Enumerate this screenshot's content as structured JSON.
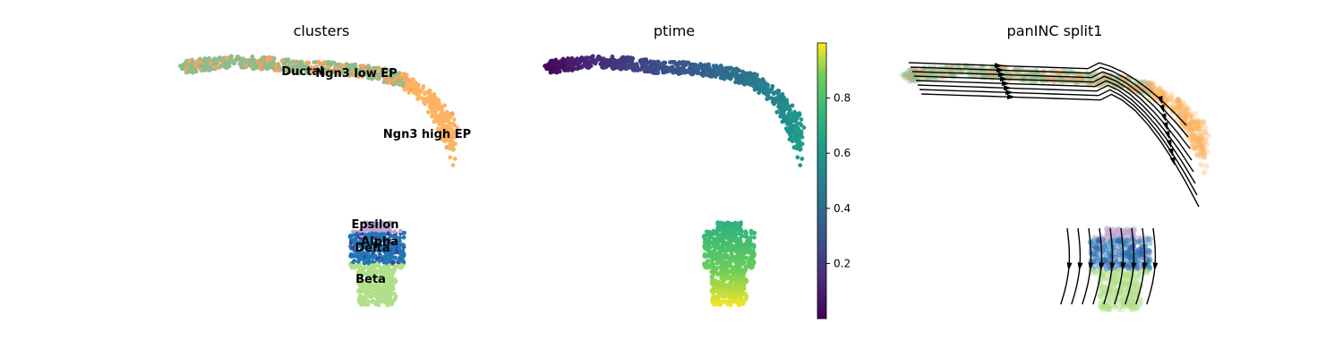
{
  "chart_data": [
    {
      "type": "scatter",
      "title": "clusters",
      "xlabel": "",
      "ylabel": "",
      "grid": false,
      "legend": "on data",
      "clusters": [
        {
          "label": "Ductal",
          "color": "#8fbc8f"
        },
        {
          "label": "Ngn3 low EP",
          "color": "#f4a460"
        },
        {
          "label": "Ngn3 high EP",
          "color": "#fdb462"
        },
        {
          "label": "Epsilon",
          "color": "#bca3d1"
        },
        {
          "label": "Alpha",
          "color": "#1f78b4"
        },
        {
          "label": "Delta",
          "color": "#3f3fa0"
        },
        {
          "label": "Beta",
          "color": "#b2df8a"
        }
      ]
    },
    {
      "type": "scatter",
      "title": "ptime",
      "xlabel": "",
      "ylabel": "",
      "grid": false,
      "colormap": "viridis",
      "colorbar": {
        "range": [
          0.0,
          1.0
        ],
        "ticks": [
          "0.2",
          "0.4",
          "0.6",
          "0.8"
        ],
        "tick_values": [
          0.2,
          0.4,
          0.6,
          0.8
        ]
      }
    },
    {
      "type": "scatter",
      "title": "panINC split1",
      "xlabel": "",
      "ylabel": "",
      "grid": false,
      "overlay": "velocity streamlines"
    }
  ]
}
